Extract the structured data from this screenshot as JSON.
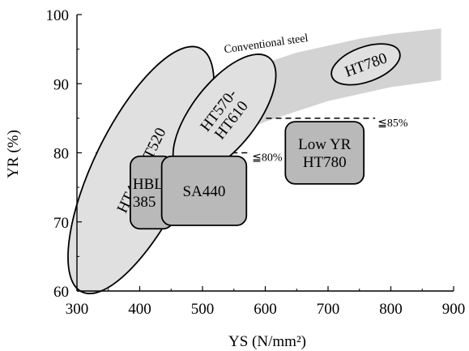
{
  "chart_data": {
    "type": "scatter",
    "xlabel": "YS (N/mm²)",
    "ylabel": "YR (%)",
    "xlim": [
      300,
      900
    ],
    "ylim": [
      60,
      100
    ],
    "x_ticks": [
      "300",
      "400",
      "500",
      "600",
      "700",
      "800",
      "900"
    ],
    "y_ticks": [
      "60",
      "70",
      "80",
      "90",
      "100"
    ],
    "band": {
      "label": "Conventional steel",
      "color": "#d3d3d3",
      "upper": [
        [
          320,
          71
        ],
        [
          350,
          77
        ],
        [
          400,
          84
        ],
        [
          450,
          87.5
        ],
        [
          500,
          89.5
        ],
        [
          550,
          91.5
        ],
        [
          600,
          93
        ],
        [
          650,
          94.5
        ],
        [
          700,
          95.5
        ],
        [
          750,
          96.5
        ],
        [
          800,
          97.2
        ],
        [
          880,
          98
        ]
      ],
      "lower": [
        [
          880,
          90.5
        ],
        [
          800,
          89.5
        ],
        [
          750,
          88.5
        ],
        [
          700,
          87.5
        ],
        [
          650,
          86
        ],
        [
          600,
          84.5
        ],
        [
          550,
          82.5
        ],
        [
          500,
          80
        ],
        [
          450,
          77
        ],
        [
          400,
          72
        ],
        [
          350,
          66
        ],
        [
          320,
          63
        ]
      ]
    },
    "ellipses": [
      {
        "label": "HT490-HT520",
        "lines": [
          "HT490-HT520"
        ],
        "cx": 402,
        "cy": 77.5,
        "rx": 20,
        "ry": 9.5,
        "rotation": -64,
        "fill": "#e0e0e0"
      },
      {
        "label": "HT570-HT610",
        "lines": [
          "HT570-",
          "HT610"
        ],
        "cx": 535,
        "cy": 85.5,
        "rx": 10.5,
        "ry": 6.5,
        "rotation": -52,
        "fill": "#e0e0e0"
      },
      {
        "label": "HT780",
        "lines": [
          "HT780"
        ],
        "cx": 760,
        "cy": 92.8,
        "rx": 5.2,
        "ry": 3.5,
        "rotation": -20,
        "fill": "#e0e0e0"
      }
    ],
    "boxes": [
      {
        "label": "HBL385",
        "lines": [
          "HBL",
          "385"
        ],
        "x0": 385,
        "x1": 453,
        "y0": 69,
        "y1": 79.5,
        "fill": "#b9b9b9"
      },
      {
        "label": "SA440",
        "lines": [
          "SA440"
        ],
        "x0": 435,
        "x1": 570,
        "y0": 69.5,
        "y1": 79.5,
        "fill": "#b9b9b9"
      },
      {
        "label": "Low YR HT780",
        "lines": [
          "Low YR",
          "HT780"
        ],
        "x0": 632,
        "x1": 757,
        "y0": 75.5,
        "y1": 84.5,
        "fill": "#b9b9b9"
      }
    ],
    "threshold_lines": [
      {
        "label": "≦85%",
        "y": 85,
        "x0": 400,
        "x1": 775
      },
      {
        "label": "≦80%",
        "y": 80,
        "x0": 330,
        "x1": 575
      }
    ],
    "grid": false
  }
}
